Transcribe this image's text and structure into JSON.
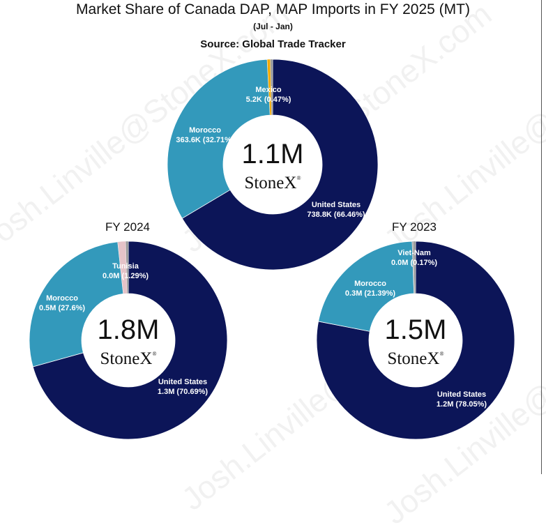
{
  "title": "Market Share of Canada DAP, MAP Imports in FY 2025 (MT)",
  "subtitle": "(Jul - Jan)",
  "source": "Source: Global Trade Tracker",
  "watermark": "Josh.Linville@StoneX.com",
  "logo_text": "StoneX",
  "logo_mark": "®",
  "colors": {
    "United States": "#0c1558",
    "Morocco": "#3399bb",
    "Mexico": "#f2a900",
    "Mexico_edge": "#e0362c",
    "Tunisia": "#e5c3c8",
    "Viet-Nam": "#9a9a9a"
  },
  "chart_data": [
    {
      "type": "pie",
      "subtype": "donut",
      "label": "",
      "center_value": "1.1M",
      "slices": [
        {
          "name": "United States",
          "value": 738.8,
          "pct": 66.46,
          "value_label": "738.8K (66.46%)"
        },
        {
          "name": "Morocco",
          "value": 363.6,
          "pct": 32.71,
          "value_label": "363.6K (32.71%)"
        },
        {
          "name": "Mexico",
          "value": 5.2,
          "pct": 0.47,
          "value_label": "5.2K (0.47%)"
        },
        {
          "name": "",
          "value": 4.0,
          "pct": 0.36,
          "value_label": ""
        }
      ]
    },
    {
      "type": "pie",
      "subtype": "donut",
      "label": "FY 2024",
      "center_value": "1.8M",
      "slices": [
        {
          "name": "United States",
          "value": 1.3,
          "pct": 70.69,
          "value_label": "1.3M (70.69%)"
        },
        {
          "name": "Morocco",
          "value": 0.5,
          "pct": 27.6,
          "value_label": "0.5M (27.6%)"
        },
        {
          "name": "Tunisia",
          "value": 0.0,
          "pct": 1.29,
          "value_label": "0.0M (1.29%)"
        },
        {
          "name": "",
          "value": 0.0,
          "pct": 0.42,
          "value_label": ""
        }
      ]
    },
    {
      "type": "pie",
      "subtype": "donut",
      "label": "FY 2023",
      "center_value": "1.5M",
      "slices": [
        {
          "name": "United States",
          "value": 1.2,
          "pct": 78.05,
          "value_label": "1.2M (78.05%)"
        },
        {
          "name": "Morocco",
          "value": 0.3,
          "pct": 21.39,
          "value_label": "0.3M (21.39%)"
        },
        {
          "name": "Viet-Nam",
          "value": 0.0,
          "pct": 0.17,
          "value_label": "0.0M (0.17%)"
        },
        {
          "name": "",
          "value": 0.0,
          "pct": 0.39,
          "value_label": ""
        }
      ]
    }
  ]
}
